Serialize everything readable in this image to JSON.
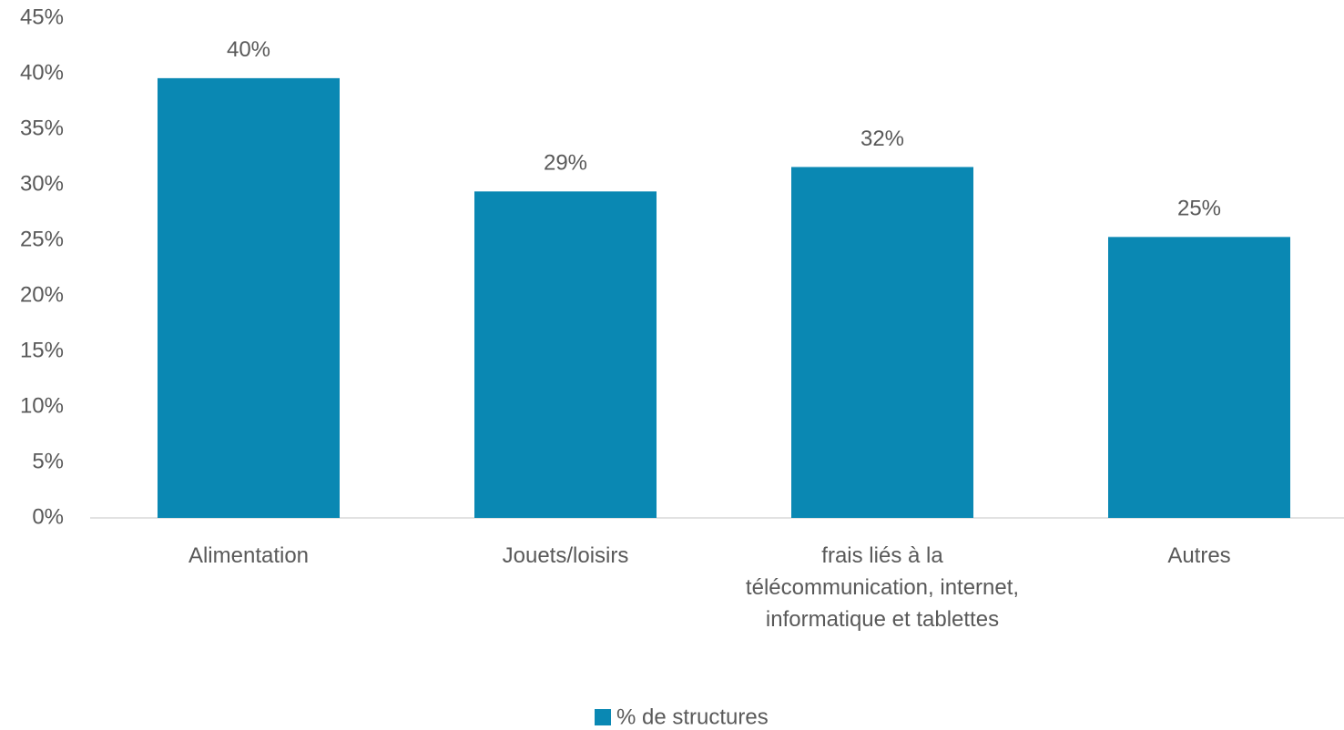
{
  "chart_data": {
    "type": "bar",
    "categories": [
      "Alimentation",
      "Jouets/loisirs",
      "frais liés à la télécommunication, internet,  informatique et tablettes",
      "Autres"
    ],
    "series": [
      {
        "name": "% de structures",
        "color": "#0a88b3",
        "values": [
          39.6,
          29.4,
          31.6,
          25.3
        ],
        "value_labels": [
          "40%",
          "29%",
          "32%",
          "25%"
        ]
      }
    ],
    "ylim": [
      0,
      45
    ],
    "yticks": [
      {
        "value": 0,
        "label": "0%"
      },
      {
        "value": 5,
        "label": "5%"
      },
      {
        "value": 10,
        "label": "10%"
      },
      {
        "value": 15,
        "label": "15%"
      },
      {
        "value": 20,
        "label": "20%"
      },
      {
        "value": 25,
        "label": "25%"
      },
      {
        "value": 30,
        "label": "30%"
      },
      {
        "value": 35,
        "label": "35%"
      },
      {
        "value": 40,
        "label": "40%"
      },
      {
        "value": 45,
        "label": "45%"
      }
    ],
    "grid": false,
    "legend": "bottom"
  }
}
